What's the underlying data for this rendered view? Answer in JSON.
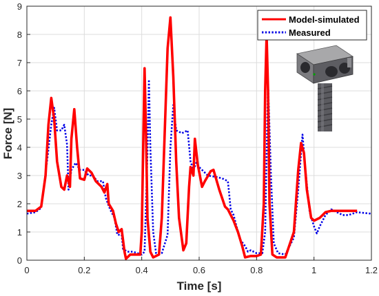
{
  "chart_data": {
    "type": "line",
    "xlabel": "Time [s]",
    "ylabel": "Force [N]",
    "xlim": [
      0,
      1.2
    ],
    "ylim": [
      0,
      9
    ],
    "xticks": [
      0,
      0.2,
      0.4,
      0.6,
      0.8,
      1,
      1.2
    ],
    "xtick_labels": [
      "0",
      "0.2",
      "0.4",
      "0.6",
      "0.8",
      "1",
      "1.2"
    ],
    "yticks": [
      0,
      1,
      2,
      3,
      4,
      5,
      6,
      7,
      8,
      9
    ],
    "ytick_labels": [
      "0",
      "1",
      "2",
      "3",
      "4",
      "5",
      "6",
      "7",
      "8",
      "9"
    ],
    "grid": true,
    "legend_position": "top-right",
    "inset_image": "bolt-with-sensor-block-icon",
    "series": [
      {
        "name": "Model-simulated",
        "color": "#ff0000",
        "style": "solid",
        "points": [
          [
            0,
            1.75
          ],
          [
            0.03,
            1.75
          ],
          [
            0.05,
            1.9
          ],
          [
            0.065,
            3.0
          ],
          [
            0.075,
            4.8
          ],
          [
            0.085,
            5.75
          ],
          [
            0.095,
            5.0
          ],
          [
            0.105,
            3.5
          ],
          [
            0.12,
            2.6
          ],
          [
            0.13,
            2.5
          ],
          [
            0.14,
            3.0
          ],
          [
            0.15,
            2.6
          ],
          [
            0.155,
            4.3
          ],
          [
            0.165,
            5.35
          ],
          [
            0.175,
            4.0
          ],
          [
            0.185,
            2.9
          ],
          [
            0.2,
            2.85
          ],
          [
            0.21,
            3.25
          ],
          [
            0.225,
            3.1
          ],
          [
            0.24,
            2.8
          ],
          [
            0.26,
            2.6
          ],
          [
            0.27,
            2.4
          ],
          [
            0.28,
            2.7
          ],
          [
            0.285,
            2.0
          ],
          [
            0.3,
            1.75
          ],
          [
            0.31,
            1.3
          ],
          [
            0.32,
            1.0
          ],
          [
            0.33,
            1.1
          ],
          [
            0.34,
            0.3
          ],
          [
            0.345,
            0.05
          ],
          [
            0.36,
            0.2
          ],
          [
            0.38,
            0.2
          ],
          [
            0.395,
            0.2
          ],
          [
            0.4,
            1.0
          ],
          [
            0.405,
            4.0
          ],
          [
            0.41,
            6.8
          ],
          [
            0.415,
            4.5
          ],
          [
            0.42,
            1.5
          ],
          [
            0.43,
            0.3
          ],
          [
            0.44,
            0.1
          ],
          [
            0.46,
            0.2
          ],
          [
            0.47,
            1.5
          ],
          [
            0.48,
            4.5
          ],
          [
            0.49,
            7.5
          ],
          [
            0.5,
            8.6
          ],
          [
            0.51,
            6.5
          ],
          [
            0.52,
            3.5
          ],
          [
            0.53,
            1.5
          ],
          [
            0.545,
            0.35
          ],
          [
            0.555,
            0.6
          ],
          [
            0.565,
            2.6
          ],
          [
            0.57,
            3.3
          ],
          [
            0.58,
            3.0
          ],
          [
            0.585,
            4.3
          ],
          [
            0.595,
            3.4
          ],
          [
            0.61,
            2.6
          ],
          [
            0.62,
            2.8
          ],
          [
            0.64,
            3.15
          ],
          [
            0.65,
            3.2
          ],
          [
            0.67,
            2.5
          ],
          [
            0.69,
            1.9
          ],
          [
            0.7,
            1.8
          ],
          [
            0.72,
            1.4
          ],
          [
            0.735,
            1.0
          ],
          [
            0.75,
            0.5
          ],
          [
            0.76,
            0.1
          ],
          [
            0.78,
            0.15
          ],
          [
            0.8,
            0.15
          ],
          [
            0.815,
            0.2
          ],
          [
            0.825,
            2.0
          ],
          [
            0.83,
            6.0
          ],
          [
            0.835,
            8.0
          ],
          [
            0.84,
            6.0
          ],
          [
            0.845,
            2.0
          ],
          [
            0.855,
            0.2
          ],
          [
            0.87,
            0.1
          ],
          [
            0.9,
            0.1
          ],
          [
            0.93,
            1.0
          ],
          [
            0.945,
            3.2
          ],
          [
            0.955,
            4.15
          ],
          [
            0.965,
            3.8
          ],
          [
            0.975,
            2.5
          ],
          [
            0.99,
            1.5
          ],
          [
            1.0,
            1.4
          ],
          [
            1.02,
            1.5
          ],
          [
            1.04,
            1.7
          ],
          [
            1.06,
            1.75
          ],
          [
            1.1,
            1.75
          ],
          [
            1.15,
            1.75
          ]
        ]
      },
      {
        "name": "Measured",
        "color": "#0000e6",
        "style": "dotted",
        "points": [
          [
            0,
            1.65
          ],
          [
            0.03,
            1.7
          ],
          [
            0.05,
            1.85
          ],
          [
            0.07,
            3.5
          ],
          [
            0.085,
            4.8
          ],
          [
            0.095,
            5.4
          ],
          [
            0.105,
            4.6
          ],
          [
            0.12,
            4.6
          ],
          [
            0.13,
            4.8
          ],
          [
            0.14,
            4.1
          ],
          [
            0.145,
            2.5
          ],
          [
            0.155,
            3.2
          ],
          [
            0.17,
            3.45
          ],
          [
            0.185,
            3.2
          ],
          [
            0.2,
            3.2
          ],
          [
            0.215,
            3.0
          ],
          [
            0.23,
            3.0
          ],
          [
            0.245,
            2.8
          ],
          [
            0.265,
            2.8
          ],
          [
            0.275,
            2.2
          ],
          [
            0.29,
            1.8
          ],
          [
            0.305,
            1.5
          ],
          [
            0.315,
            0.9
          ],
          [
            0.33,
            0.9
          ],
          [
            0.335,
            0.4
          ],
          [
            0.35,
            0.3
          ],
          [
            0.37,
            0.3
          ],
          [
            0.4,
            0.2
          ],
          [
            0.41,
            0.3
          ],
          [
            0.42,
            3.8
          ],
          [
            0.425,
            6.4
          ],
          [
            0.43,
            4.0
          ],
          [
            0.44,
            1.0
          ],
          [
            0.45,
            0.25
          ],
          [
            0.47,
            0.25
          ],
          [
            0.49,
            0.9
          ],
          [
            0.5,
            4.0
          ],
          [
            0.51,
            5.5
          ],
          [
            0.52,
            4.6
          ],
          [
            0.54,
            4.5
          ],
          [
            0.56,
            4.6
          ],
          [
            0.57,
            3.5
          ],
          [
            0.58,
            3.2
          ],
          [
            0.59,
            3.45
          ],
          [
            0.6,
            3.3
          ],
          [
            0.61,
            3.2
          ],
          [
            0.63,
            3.0
          ],
          [
            0.66,
            2.95
          ],
          [
            0.68,
            2.9
          ],
          [
            0.7,
            2.8
          ],
          [
            0.705,
            2.3
          ],
          [
            0.71,
            1.8
          ],
          [
            0.72,
            1.6
          ],
          [
            0.73,
            1.2
          ],
          [
            0.745,
            0.7
          ],
          [
            0.76,
            0.5
          ],
          [
            0.77,
            0.3
          ],
          [
            0.78,
            0.35
          ],
          [
            0.8,
            0.25
          ],
          [
            0.82,
            0.25
          ],
          [
            0.83,
            1.0
          ],
          [
            0.84,
            6.3
          ],
          [
            0.85,
            3.0
          ],
          [
            0.86,
            0.6
          ],
          [
            0.875,
            0.25
          ],
          [
            0.9,
            0.2
          ],
          [
            0.93,
            0.8
          ],
          [
            0.945,
            2.5
          ],
          [
            0.96,
            4.45
          ],
          [
            0.97,
            3.2
          ],
          [
            0.985,
            1.7
          ],
          [
            1.0,
            1.2
          ],
          [
            1.01,
            0.95
          ],
          [
            1.02,
            1.2
          ],
          [
            1.04,
            1.6
          ],
          [
            1.06,
            1.8
          ],
          [
            1.08,
            1.7
          ],
          [
            1.1,
            1.6
          ],
          [
            1.12,
            1.6
          ],
          [
            1.15,
            1.7
          ],
          [
            1.2,
            1.65
          ]
        ]
      }
    ]
  }
}
